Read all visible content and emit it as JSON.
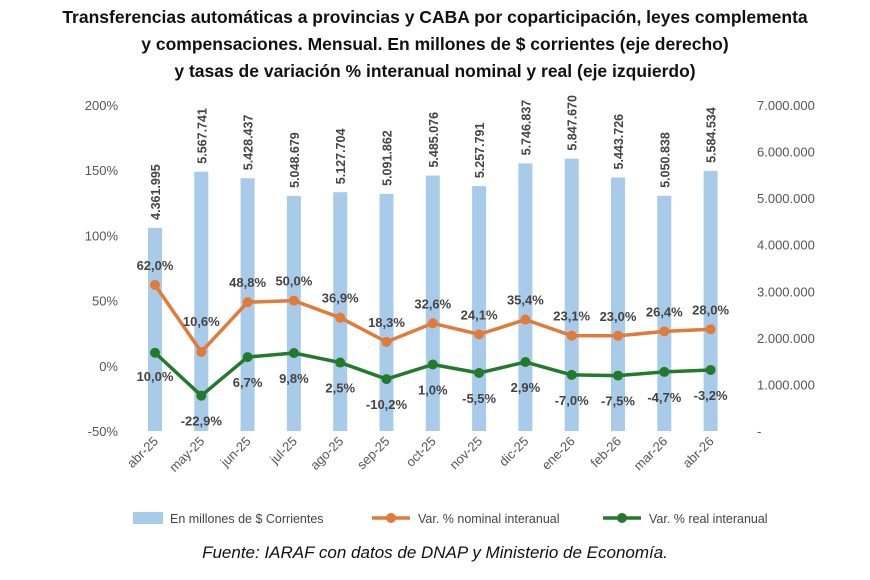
{
  "title": {
    "line1": "Transferencias automáticas a provincias y CABA por coparticipación, leyes complementa",
    "line2": "y compensaciones. Mensual. En millones de $ corrientes (eje derecho)",
    "line3": "y tasas de variación % interanual nominal y real (eje izquierdo)"
  },
  "source": "Fuente: IARAF con datos de DNAP y Ministerio de Economía.",
  "colors": {
    "bar": "#a9cbea",
    "nominal": "#e07b39",
    "real": "#237a2c"
  },
  "chart_data": {
    "type": "bar+line",
    "categories": [
      "abr-25",
      "may-25",
      "jun-25",
      "jul-25",
      "ago-25",
      "sep-25",
      "oct-25",
      "nov-25",
      "dic-25",
      "ene-26",
      "feb-26",
      "mar-26",
      "abr-26"
    ],
    "bars": {
      "name": "En millones de $ Corrientes",
      "axis": "right",
      "values": [
        4361995,
        5567741,
        5428437,
        5048679,
        5127704,
        5091862,
        5485076,
        5257791,
        5746837,
        5847670,
        5443726,
        5050838,
        5584534
      ],
      "labels": [
        "4.361.995",
        "5.567.741",
        "5.428.437",
        "5.048.679",
        "5.127.704",
        "5.091.862",
        "5.485.076",
        "5.257.791",
        "5.746.837",
        "5.847.670",
        "5.443.726",
        "5.050.838",
        "5.584.534"
      ]
    },
    "series": [
      {
        "name": "Var. % nominal interanual",
        "axis": "left",
        "values": [
          62.0,
          10.6,
          48.8,
          50.0,
          36.9,
          18.3,
          32.6,
          24.1,
          35.4,
          23.1,
          23.0,
          26.4,
          28.0
        ],
        "labels": [
          "62,0%",
          "10,6%",
          "48,8%",
          "50,0%",
          "36,9%",
          "18,3%",
          "32,6%",
          "24,1%",
          "35,4%",
          "23,1%",
          "23,0%",
          "26,4%",
          "28,0%"
        ]
      },
      {
        "name": "Var. % real interanual",
        "axis": "left",
        "values": [
          10.0,
          -22.9,
          6.7,
          9.8,
          2.5,
          -10.2,
          1.0,
          -5.5,
          2.9,
          -7.0,
          -7.5,
          -4.7,
          -3.2
        ],
        "labels": [
          "10,0%",
          "-22,9%",
          "6,7%",
          "9,8%",
          "2,5%",
          "-10,2%",
          "1,0%",
          "-5,5%",
          "2,9%",
          "-7,0%",
          "-7,5%",
          "-4,7%",
          "-3,2%"
        ]
      }
    ],
    "left_axis": {
      "ylim": [
        -50,
        200
      ],
      "ticks": [
        -50,
        0,
        50,
        100,
        150,
        200
      ],
      "tick_labels": [
        "-50%",
        "0%",
        "50%",
        "100%",
        "150%",
        "200%"
      ]
    },
    "right_axis": {
      "ylim": [
        0,
        7000000
      ],
      "ticks": [
        0,
        1000000,
        2000000,
        3000000,
        4000000,
        5000000,
        6000000,
        7000000
      ],
      "tick_labels": [
        "-",
        "1.000.000",
        "2.000.000",
        "3.000.000",
        "4.000.000",
        "5.000.000",
        "6.000.000",
        "7.000.000"
      ]
    },
    "grid": false,
    "legend_position": "bottom"
  }
}
